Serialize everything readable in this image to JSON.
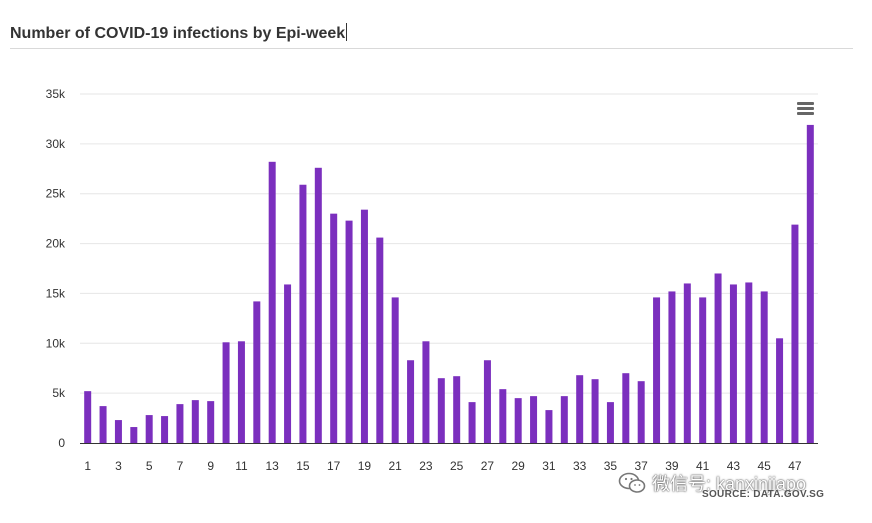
{
  "title": "Number of COVID-19 infections by Epi-week",
  "source": "SOURCE: DATA.GOV.SG",
  "watermark": "微信号: kanxinjiapo",
  "colors": {
    "bar": "#7B2FBE",
    "grid": "#e6e6e6",
    "axis": "#333333",
    "label": "#333333"
  },
  "icons": {
    "menu": "hamburger-menu-icon",
    "watermark": "wechat-icon"
  },
  "chart_data": {
    "type": "bar",
    "categories": [
      "1",
      "2",
      "3",
      "4",
      "5",
      "6",
      "7",
      "8",
      "9",
      "10",
      "11",
      "12",
      "13",
      "14",
      "15",
      "16",
      "17",
      "18",
      "19",
      "20",
      "21",
      "22",
      "23",
      "24",
      "25",
      "26",
      "27",
      "28",
      "29",
      "30",
      "31",
      "32",
      "33",
      "34",
      "35",
      "36",
      "37",
      "38",
      "39",
      "40",
      "41",
      "42",
      "43",
      "44",
      "45",
      "46",
      "47",
      "48"
    ],
    "values": [
      5200,
      3700,
      2300,
      1600,
      2800,
      2700,
      3900,
      4300,
      4200,
      10100,
      10200,
      14200,
      28200,
      15900,
      25900,
      27600,
      23000,
      22300,
      23400,
      20600,
      14600,
      8300,
      10200,
      6500,
      6700,
      4100,
      8300,
      5400,
      4500,
      4700,
      3300,
      4700,
      6800,
      6400,
      4100,
      7000,
      6200,
      14600,
      15200,
      16000,
      14600,
      17000,
      15900,
      16100,
      15200,
      10500,
      21900,
      31900
    ],
    "x_tick_labels": [
      "1",
      "3",
      "5",
      "7",
      "9",
      "11",
      "13",
      "15",
      "17",
      "19",
      "21",
      "23",
      "25",
      "27",
      "29",
      "31",
      "33",
      "35",
      "37",
      "39",
      "41",
      "43",
      "45",
      "47"
    ],
    "y_tick_labels": [
      "0",
      "5k",
      "10k",
      "15k",
      "20k",
      "25k",
      "30k",
      "35k"
    ],
    "ylim": [
      0,
      35000
    ],
    "grid": true,
    "legend": "none"
  }
}
